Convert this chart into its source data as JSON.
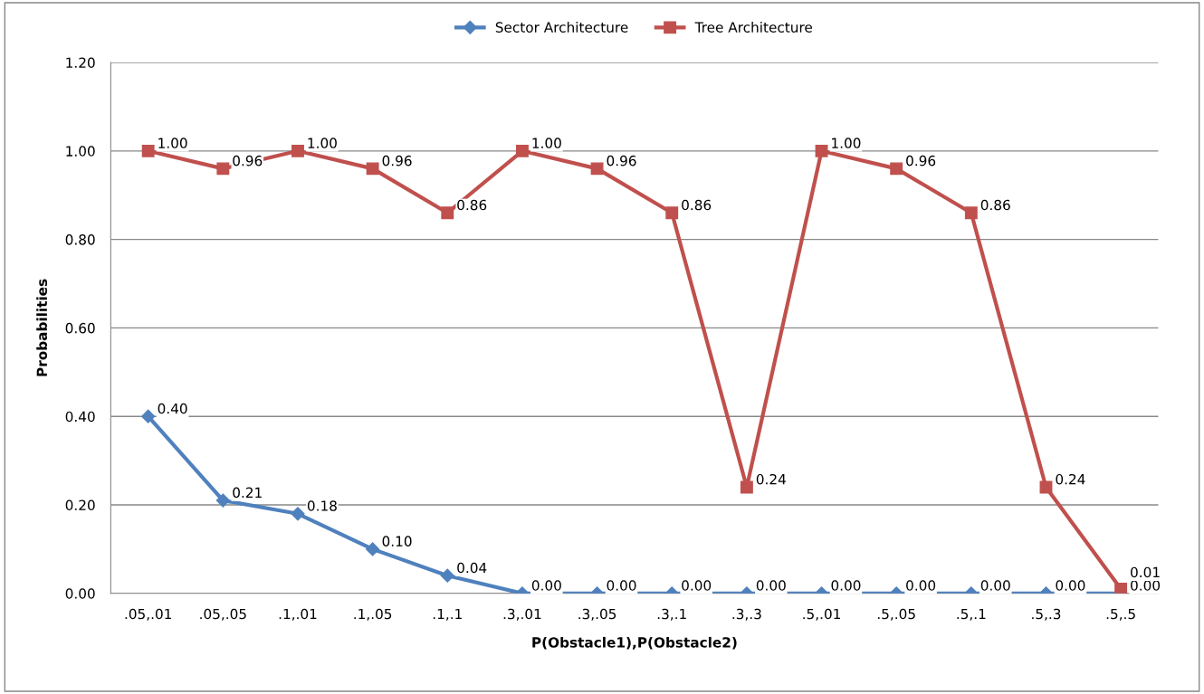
{
  "chart_data": {
    "type": "line",
    "xlabel": "P(Obstacle1),P(Obstacle2)",
    "ylabel": "Probabilities",
    "categories": [
      ".05,.01",
      ".05,.05",
      ".1,.01",
      ".1,.05",
      ".1,.1",
      ".3,.01",
      ".3,.05",
      ".3,.1",
      ".3,.3",
      ".5,.01",
      ".5,.05",
      ".5,.1",
      ".5,.3",
      ".5,.5"
    ],
    "series": [
      {
        "name": "Sector Architecture",
        "color": "#4f81bd",
        "marker": "diamond",
        "values": [
          0.4,
          0.21,
          0.18,
          0.1,
          0.04,
          0.0,
          0.0,
          0.0,
          0.0,
          0.0,
          0.0,
          0.0,
          0.0,
          0.0
        ],
        "value_labels": [
          "0.40",
          "0.21",
          "0.18",
          "0.10",
          "0.04",
          "0.00",
          "0.00",
          "0.00",
          "0.00",
          "0.00",
          "0.00",
          "0.00",
          "0.00",
          "0.00"
        ]
      },
      {
        "name": "Tree Architecture",
        "color": "#c0504d",
        "marker": "square",
        "values": [
          1.0,
          0.96,
          1.0,
          0.96,
          0.86,
          1.0,
          0.96,
          0.86,
          0.24,
          1.0,
          0.96,
          0.86,
          0.24,
          0.01
        ],
        "value_labels": [
          "1.00",
          "0.96",
          "1.00",
          "0.96",
          "0.86",
          "1.00",
          "0.96",
          "0.86",
          "0.24",
          "1.00",
          "0.96",
          "0.86",
          "0.24",
          "0.01"
        ]
      }
    ],
    "ylim": [
      0,
      1.2
    ],
    "yticks": [
      {
        "value": 0,
        "label": "0.00"
      },
      {
        "value": 0.2,
        "label": "0.20"
      },
      {
        "value": 0.4,
        "label": "0.40"
      },
      {
        "value": 0.6,
        "label": "0.60"
      },
      {
        "value": 0.8,
        "label": "0.80"
      },
      {
        "value": 1.0,
        "label": "1.00"
      },
      {
        "value": 1.2,
        "label": "1.20"
      }
    ],
    "grid": "y",
    "legend": "top",
    "line_style": "solid"
  }
}
